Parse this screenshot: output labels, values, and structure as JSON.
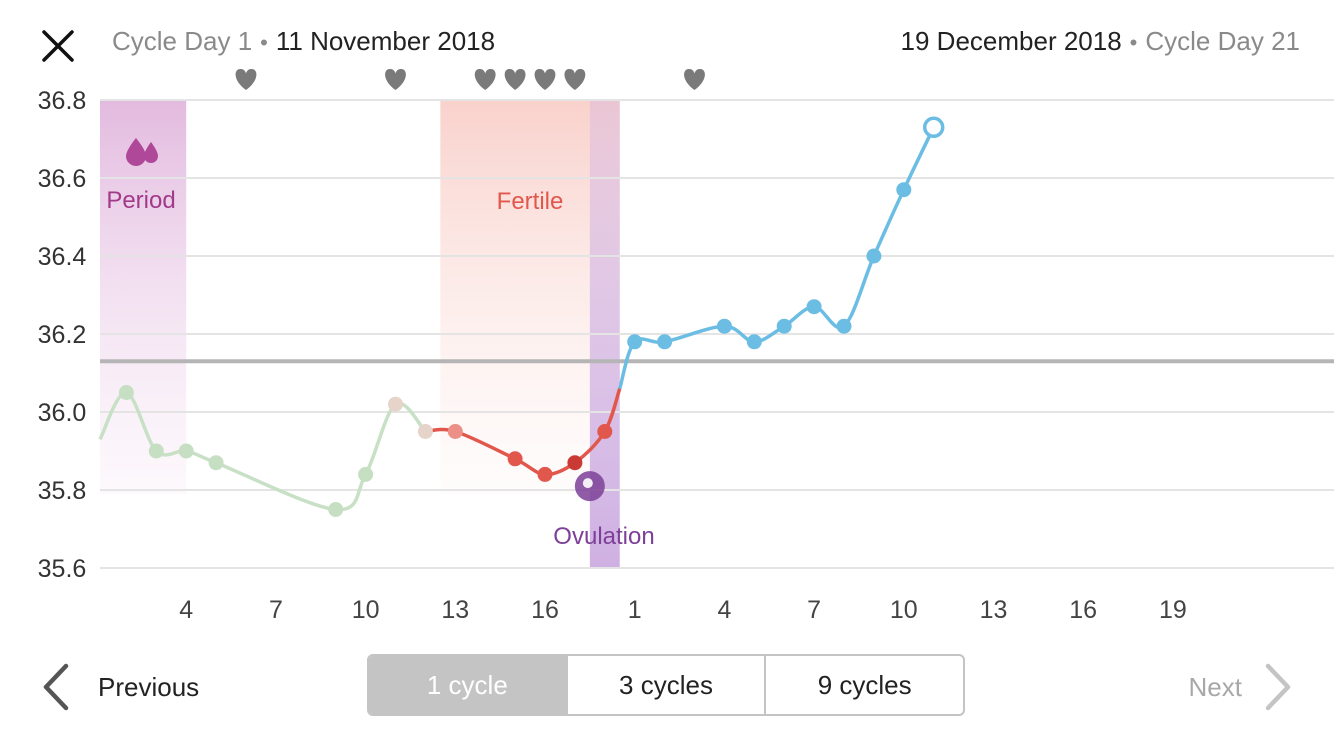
{
  "header": {
    "start_day": "Cycle Day 1",
    "start_date": "11 November 2018",
    "end_date": "19 December 2018",
    "end_day": "Cycle Day 21",
    "separator": "•"
  },
  "colors": {
    "period": "#b0489a",
    "fertile": "#e2574c",
    "ovulation": "#7d3f98",
    "previous_cycle_line": "#c8e0c5",
    "current_cycle_line": "#6bbde3",
    "coverline": "#b5b5b5",
    "grid": "#e4e4e4",
    "heart": "#7a7a7a"
  },
  "chart_data": {
    "type": "line",
    "ylim": [
      35.6,
      36.8
    ],
    "y_ticks": [
      "35.6",
      "35.8",
      "36.0",
      "36.2",
      "36.4",
      "36.6",
      "36.8"
    ],
    "x_tick_labels": [
      "4",
      "7",
      "10",
      "13",
      "16",
      "1",
      "4",
      "7",
      "10",
      "13",
      "16",
      "19"
    ],
    "x_tick_index": [
      3,
      6,
      9,
      12,
      15,
      18,
      21,
      24,
      27,
      30,
      33,
      36
    ],
    "x_range": [
      0,
      41
    ],
    "coverline": 36.13,
    "regions": [
      {
        "label": "Period",
        "start": -0.5,
        "end": 3.0
      },
      {
        "label": "Fertile",
        "start": 11.5,
        "end": 17.5
      },
      {
        "label": "Ovulation",
        "start": 16.5,
        "end": 17.5
      }
    ],
    "intercourse_days": [
      5,
      10,
      13,
      14,
      15,
      16,
      20
    ],
    "ovulation_day": 16.5,
    "ovulation_temp": 35.81,
    "series": [
      {
        "points": [
          {
            "x": 1,
            "y": 36.05
          },
          {
            "x": 2,
            "y": 35.9
          },
          {
            "x": 3,
            "y": 35.9
          },
          {
            "x": 4,
            "y": 35.87
          },
          {
            "x": 8,
            "y": 35.75
          },
          {
            "x": 9,
            "y": 35.84
          },
          {
            "x": 10,
            "y": 36.02
          },
          {
            "x": 11,
            "y": 35.95
          },
          {
            "x": 12,
            "y": 35.95
          },
          {
            "x": 14,
            "y": 35.88
          },
          {
            "x": 15,
            "y": 35.84
          },
          {
            "x": 16,
            "y": 35.87
          },
          {
            "x": 17,
            "y": 35.95
          }
        ]
      },
      {
        "points": [
          {
            "x": 18,
            "y": 36.18
          },
          {
            "x": 19,
            "y": 36.18
          },
          {
            "x": 21,
            "y": 36.22
          },
          {
            "x": 22,
            "y": 36.18
          },
          {
            "x": 23,
            "y": 36.22
          },
          {
            "x": 24,
            "y": 36.27
          },
          {
            "x": 25,
            "y": 36.22
          },
          {
            "x": 26,
            "y": 36.4
          },
          {
            "x": 27,
            "y": 36.57
          },
          {
            "x": 28,
            "y": 36.73
          }
        ]
      }
    ]
  },
  "footer": {
    "previous_label": "Previous",
    "next_label": "Next",
    "segments": [
      {
        "label": "1 cycle",
        "active": true
      },
      {
        "label": "3 cycles",
        "active": false
      },
      {
        "label": "9 cycles",
        "active": false
      }
    ]
  }
}
